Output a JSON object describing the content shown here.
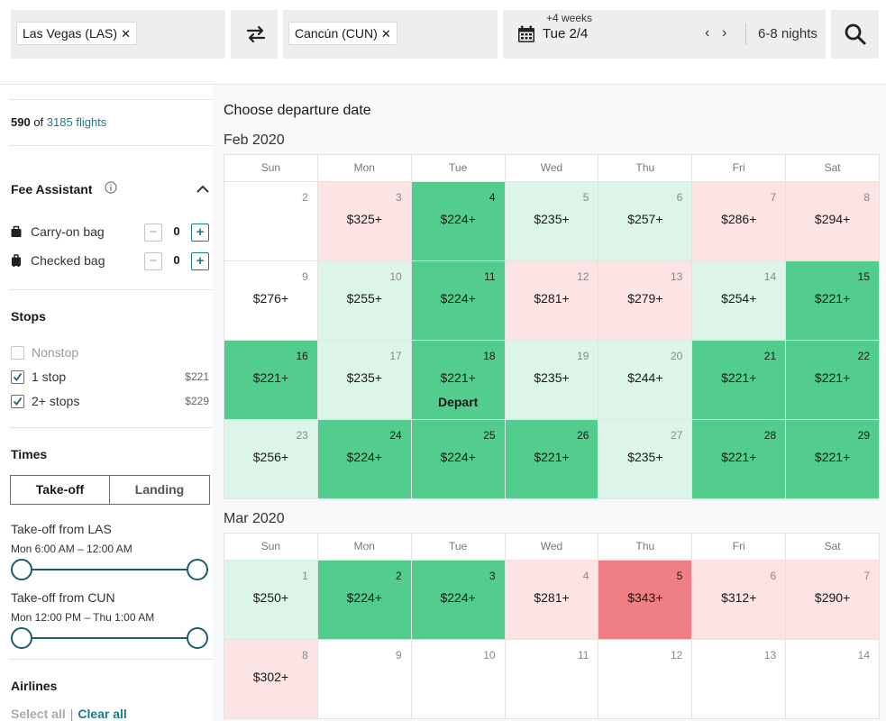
{
  "search": {
    "origin": "Las Vegas (LAS)",
    "destination": "Cancún (CUN)",
    "date_offset": "+4 weeks",
    "date": "Tue 2/4",
    "prev": "‹",
    "next": "›",
    "nights": "6-8 nights",
    "remove": "✕"
  },
  "sidebar": {
    "count_shown": "590",
    "count_of": "of",
    "count_total": "3185 flights",
    "fee_assistant": {
      "title": "Fee Assistant",
      "bags": [
        {
          "label": "Carry-on bag",
          "value": "0"
        },
        {
          "label": "Checked bag",
          "value": "0"
        }
      ],
      "minus": "−",
      "plus": "+"
    },
    "stops": {
      "title": "Stops",
      "options": [
        {
          "label": "Nonstop",
          "price": "",
          "checked": false
        },
        {
          "label": "1 stop",
          "price": "$221",
          "checked": true
        },
        {
          "label": "2+ stops",
          "price": "$229",
          "checked": true
        }
      ]
    },
    "times": {
      "title": "Times",
      "tabs": [
        "Take-off",
        "Landing"
      ],
      "ranges": [
        {
          "title": "Take-off from LAS",
          "range": "Mon 6:00 AM – 12:00 AM"
        },
        {
          "title": "Take-off from CUN",
          "range": "Mon 12:00 PM – Thu 1:00 AM"
        }
      ]
    },
    "airlines": {
      "title": "Airlines",
      "select_all": "Select all",
      "separator": "|",
      "clear_all": "Clear all"
    }
  },
  "main": {
    "heading": "Choose departure date",
    "dow": [
      "Sun",
      "Mon",
      "Tue",
      "Wed",
      "Thu",
      "Fri",
      "Sat"
    ],
    "colors": {
      "green": "#52cd8e",
      "light_green": "#dcf5e8",
      "pink": "#fce3e4",
      "red": "#f07f85",
      "accent": "#1a7b8d"
    },
    "months": [
      {
        "label": "Feb 2020",
        "weeks": [
          [
            {
              "day": "2",
              "price": "",
              "level": "none"
            },
            {
              "day": "3",
              "price": "$325+",
              "level": "pink"
            },
            {
              "day": "4",
              "price": "$224+",
              "level": "green"
            },
            {
              "day": "5",
              "price": "$235+",
              "level": "light"
            },
            {
              "day": "6",
              "price": "$257+",
              "level": "light"
            },
            {
              "day": "7",
              "price": "$286+",
              "level": "pink"
            },
            {
              "day": "8",
              "price": "$294+",
              "level": "pink"
            }
          ],
          [
            {
              "day": "9",
              "price": "$276+",
              "level": "none"
            },
            {
              "day": "10",
              "price": "$255+",
              "level": "light"
            },
            {
              "day": "11",
              "price": "$224+",
              "level": "green"
            },
            {
              "day": "12",
              "price": "$281+",
              "level": "pink"
            },
            {
              "day": "13",
              "price": "$279+",
              "level": "pink"
            },
            {
              "day": "14",
              "price": "$254+",
              "level": "light"
            },
            {
              "day": "15",
              "price": "$221+",
              "level": "green"
            }
          ],
          [
            {
              "day": "16",
              "price": "$221+",
              "level": "green"
            },
            {
              "day": "17",
              "price": "$235+",
              "level": "light"
            },
            {
              "day": "18",
              "price": "$221+",
              "level": "green",
              "note": "Depart"
            },
            {
              "day": "19",
              "price": "$235+",
              "level": "light"
            },
            {
              "day": "20",
              "price": "$244+",
              "level": "light"
            },
            {
              "day": "21",
              "price": "$221+",
              "level": "green"
            },
            {
              "day": "22",
              "price": "$221+",
              "level": "green"
            }
          ],
          [
            {
              "day": "23",
              "price": "$256+",
              "level": "light"
            },
            {
              "day": "24",
              "price": "$224+",
              "level": "green"
            },
            {
              "day": "25",
              "price": "$224+",
              "level": "green"
            },
            {
              "day": "26",
              "price": "$221+",
              "level": "green"
            },
            {
              "day": "27",
              "price": "$235+",
              "level": "light"
            },
            {
              "day": "28",
              "price": "$221+",
              "level": "green"
            },
            {
              "day": "29",
              "price": "$221+",
              "level": "green"
            }
          ]
        ]
      },
      {
        "label": "Mar 2020",
        "weeks": [
          [
            {
              "day": "1",
              "price": "$250+",
              "level": "light"
            },
            {
              "day": "2",
              "price": "$224+",
              "level": "green"
            },
            {
              "day": "3",
              "price": "$224+",
              "level": "green"
            },
            {
              "day": "4",
              "price": "$281+",
              "level": "pink"
            },
            {
              "day": "5",
              "price": "$343+",
              "level": "red"
            },
            {
              "day": "6",
              "price": "$312+",
              "level": "pink"
            },
            {
              "day": "7",
              "price": "$290+",
              "level": "pink"
            }
          ],
          [
            {
              "day": "8",
              "price": "$302+",
              "level": "pink"
            },
            {
              "day": "9",
              "price": "",
              "level": "none"
            },
            {
              "day": "10",
              "price": "",
              "level": "none"
            },
            {
              "day": "11",
              "price": "",
              "level": "none"
            },
            {
              "day": "12",
              "price": "",
              "level": "none"
            },
            {
              "day": "13",
              "price": "",
              "level": "none"
            },
            {
              "day": "14",
              "price": "",
              "level": "none"
            }
          ]
        ]
      }
    ]
  }
}
